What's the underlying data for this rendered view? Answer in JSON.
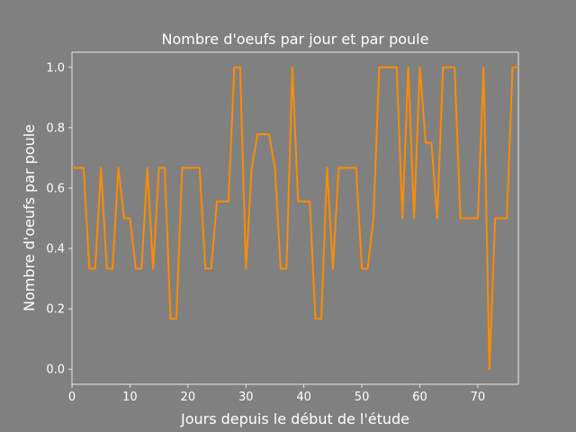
{
  "chart_data": {
    "type": "line",
    "title": "Nombre d'oeufs par jour et par poule",
    "xlabel": "Jours depuis le début de l'étude",
    "ylabel": "Nombre d'oeufs par poule",
    "xlim": [
      0,
      77
    ],
    "ylim": [
      -0.05,
      1.05
    ],
    "xticks": [
      0,
      10,
      20,
      30,
      40,
      50,
      60,
      70
    ],
    "yticks": [
      0.0,
      0.2,
      0.4,
      0.6,
      0.8,
      1.0
    ],
    "ytick_labels": [
      "0.0",
      "0.2",
      "0.4",
      "0.6",
      "0.8",
      "1.0"
    ],
    "grid": "horizontal",
    "colors": {
      "background": "#808080",
      "plot_background": "#808080",
      "line": "#ff8c00",
      "grid": "#b0b0b0",
      "text": "#ffffff"
    },
    "series": [
      {
        "x": [
          0,
          1,
          2,
          3,
          4,
          5,
          6,
          7,
          8,
          9,
          10,
          11,
          12,
          13,
          14,
          15,
          16,
          17,
          18,
          19,
          20,
          21,
          22,
          23,
          24,
          25,
          26,
          27,
          28,
          29,
          30,
          31,
          32,
          33,
          34,
          35,
          36,
          37,
          38,
          39,
          40,
          41,
          42,
          43,
          44,
          45,
          46,
          47,
          48,
          49,
          50,
          51,
          52,
          53,
          54,
          55,
          56,
          57,
          58,
          59,
          60,
          61,
          62,
          63,
          64,
          65,
          66,
          67,
          68,
          69,
          70,
          71,
          72,
          73,
          74,
          75,
          76,
          77
        ],
        "y": [
          0.667,
          0.667,
          0.667,
          0.333,
          0.333,
          0.667,
          0.333,
          0.333,
          0.667,
          0.5,
          0.5,
          0.333,
          0.333,
          0.667,
          0.333,
          0.667,
          0.667,
          0.167,
          0.167,
          0.667,
          0.667,
          0.667,
          0.667,
          0.333,
          0.333,
          0.556,
          0.556,
          0.556,
          1.0,
          1.0,
          0.333,
          0.667,
          0.778,
          0.778,
          0.778,
          0.667,
          0.333,
          0.333,
          1.0,
          0.556,
          0.556,
          0.556,
          0.167,
          0.167,
          0.667,
          0.333,
          0.667,
          0.667,
          0.667,
          0.667,
          0.333,
          0.333,
          0.5,
          1.0,
          1.0,
          1.0,
          1.0,
          0.5,
          1.0,
          0.5,
          1.0,
          0.75,
          0.75,
          0.5,
          1.0,
          1.0,
          1.0,
          0.5,
          0.5,
          0.5,
          0.5,
          1.0,
          0.0,
          0.5,
          0.5,
          0.5,
          1.0,
          1.0
        ]
      }
    ]
  }
}
